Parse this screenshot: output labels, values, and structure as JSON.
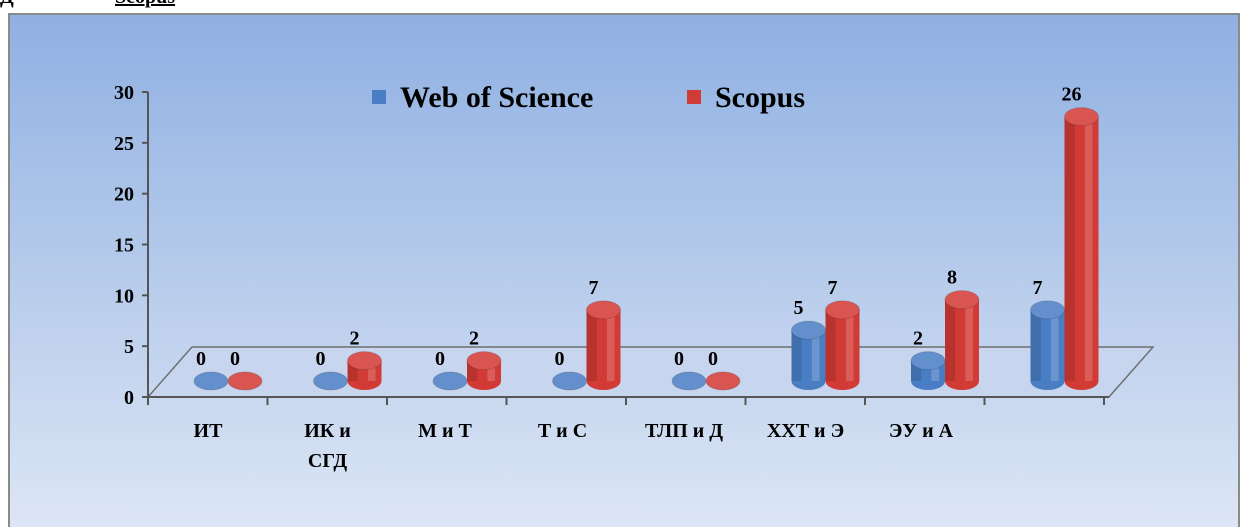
{
  "page": {
    "top_fragment_lead": "Д",
    "top_fragment_underlined": "Scopus"
  },
  "chart_data": {
    "type": "bar",
    "style": "3d-cylinder",
    "categories": [
      "ИТ",
      "ИК и СГД",
      "М и Т",
      "Т и С",
      "ТЛП и Д",
      "ХХТ и Э",
      "ЭУ и А",
      ""
    ],
    "category_lines": [
      [
        "ИТ"
      ],
      [
        "ИК и",
        "СГД"
      ],
      [
        "М и Т"
      ],
      [
        "Т и С"
      ],
      [
        "ТЛП и Д"
      ],
      [
        "ХХТ и Э"
      ],
      [
        "ЭУ и А"
      ],
      []
    ],
    "series": [
      {
        "name": "Web of Science",
        "values": [
          0,
          0,
          0,
          0,
          0,
          5,
          2,
          7
        ],
        "color": "#4a7ec4"
      },
      {
        "name": "Scopus",
        "values": [
          0,
          2,
          2,
          7,
          0,
          7,
          8,
          26
        ],
        "color": "#d23a35"
      }
    ],
    "ylim": [
      0,
      30
    ],
    "yticks": [
      0,
      5,
      10,
      15,
      20,
      25,
      30
    ],
    "legend": "top-center",
    "grid": false,
    "background_gradient": [
      "#8fb0e2",
      "#dde6f5"
    ]
  }
}
